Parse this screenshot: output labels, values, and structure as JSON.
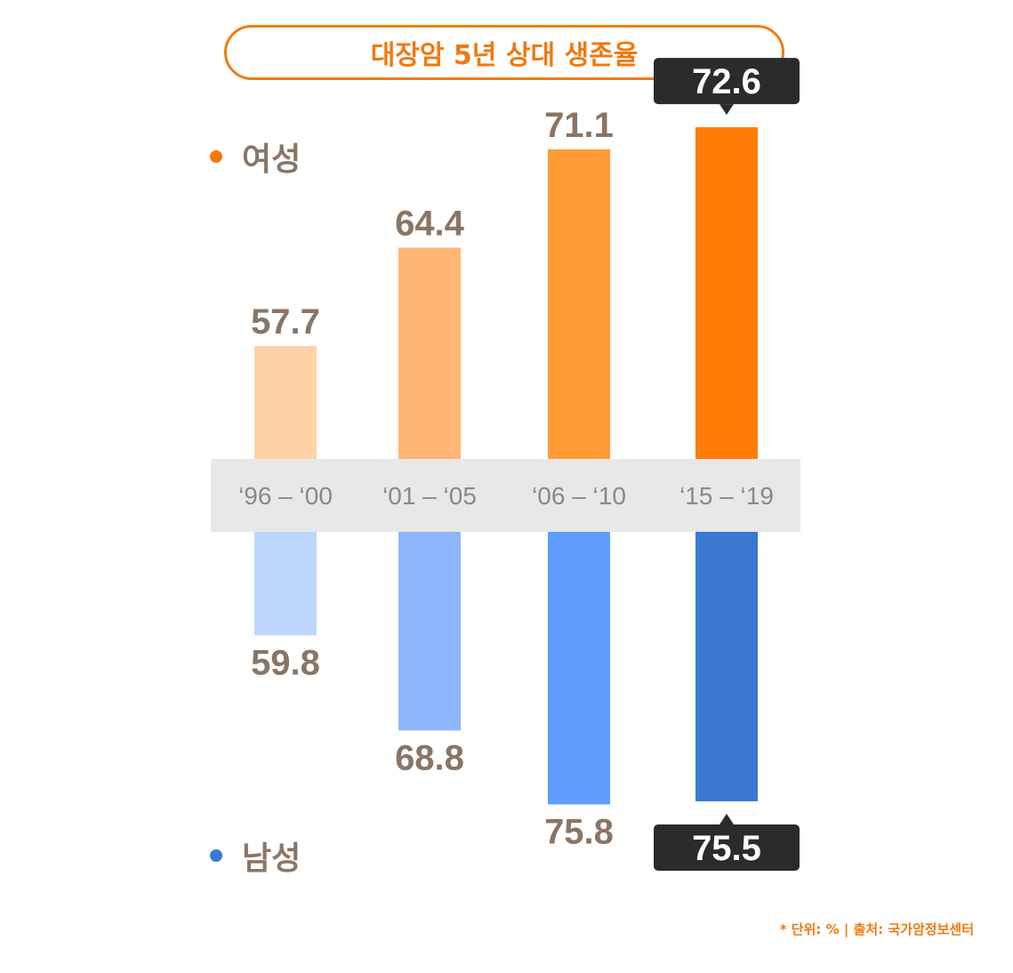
{
  "title": "대장암 5년 상대 생존율",
  "legend": {
    "female": {
      "label": "여성",
      "color": "#f47a06"
    },
    "male": {
      "label": "남성",
      "color": "#3a78d4"
    }
  },
  "source": "* 단위: % | 출처: 국가암정보센터",
  "chart_data": {
    "type": "bar",
    "unit": "%",
    "categories": [
      "‘96 – ‘00",
      "‘01 – ‘05",
      "‘06 – ‘10",
      "‘15 – ‘19"
    ],
    "series": [
      {
        "name": "여성",
        "values": [
          57.7,
          64.4,
          71.1,
          72.6
        ],
        "colors": [
          "#ffd3a8",
          "#ffb775",
          "#ff9a35",
          "#ff7c06"
        ],
        "label_color": "#8a7565",
        "highlight_index": 3
      },
      {
        "name": "남성",
        "values": [
          59.8,
          68.8,
          75.8,
          75.5
        ],
        "colors": [
          "#bcd6fe",
          "#8eb5fa",
          "#5f9efe",
          "#3a78d4"
        ],
        "label_color": "#8a7565",
        "highlight_index": 3
      }
    ],
    "highlight_box_color": "#2b2b2b",
    "category_band_color": "#e8e8e8",
    "category_label_color": "#8a8a8a",
    "axis_baseline_value": 0,
    "grid": false,
    "legend_placement": "left"
  }
}
